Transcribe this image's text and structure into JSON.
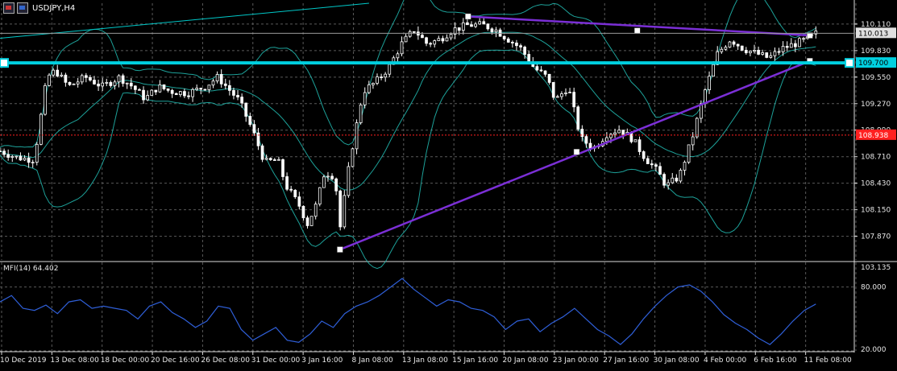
{
  "chart_data": [
    {
      "type": "candlestick",
      "title": "USDJPY,H4",
      "symbol": "USDJPY",
      "timeframe": "H4",
      "ylim": [
        107.62,
        110.33
      ],
      "y_ticks": [
        "110.110",
        "109.830",
        "109.550",
        "109.270",
        "108.990",
        "108.710",
        "108.430",
        "108.150",
        "107.870"
      ],
      "x_ticks": [
        "10 Dec 2019",
        "13 Dec 08:00",
        "18 Dec 00:00",
        "20 Dec 16:00",
        "26 Dec 08:00",
        "31 Dec 00:00",
        "3 Jan 16:00",
        "8 Jan 08:00",
        "13 Jan 08:00",
        "15 Jan 16:00",
        "20 Jan 08:00",
        "23 Jan 00:00",
        "27 Jan 16:00",
        "30 Jan 08:00",
        "4 Feb 00:00",
        "6 Feb 16:00",
        "11 Feb 08:00"
      ],
      "current_price": "110.013",
      "price_levels": [
        {
          "label": "109.700",
          "value": 109.7,
          "color": "#00d0e0"
        },
        {
          "label": "108.938",
          "value": 108.938,
          "color": "#ff2020"
        }
      ],
      "bollinger_bands": true,
      "trendlines": [
        {
          "name": "upper-trendline",
          "color": "#7b2fd6",
          "points": [
            [
              0.548,
              110.19
            ],
            [
              0.746,
              110.04
            ],
            [
              0.948,
              109.99
            ]
          ]
        },
        {
          "name": "lower-trendline",
          "color": "#7b2fd6",
          "points": [
            [
              0.398,
              107.73
            ],
            [
              0.675,
              108.76
            ],
            [
              0.948,
              109.72
            ]
          ]
        },
        {
          "name": "long-channel-line",
          "color": "#00c8c8",
          "points": [
            [
              0.0,
              109.96
            ],
            [
              0.432,
              110.33
            ]
          ]
        }
      ],
      "close_path": [
        [
          0.0,
          108.77
        ],
        [
          0.02,
          108.7
        ],
        [
          0.04,
          108.68
        ],
        [
          0.055,
          109.55
        ],
        [
          0.065,
          109.62
        ],
        [
          0.08,
          109.45
        ],
        [
          0.1,
          109.55
        ],
        [
          0.12,
          109.45
        ],
        [
          0.14,
          109.55
        ],
        [
          0.155,
          109.45
        ],
        [
          0.17,
          109.32
        ],
        [
          0.185,
          109.45
        ],
        [
          0.2,
          109.4
        ],
        [
          0.22,
          109.38
        ],
        [
          0.24,
          109.45
        ],
        [
          0.255,
          109.55
        ],
        [
          0.265,
          109.45
        ],
        [
          0.28,
          109.3
        ],
        [
          0.295,
          109.0
        ],
        [
          0.31,
          108.65
        ],
        [
          0.325,
          108.68
        ],
        [
          0.335,
          108.4
        ],
        [
          0.35,
          108.2
        ],
        [
          0.36,
          108.0
        ],
        [
          0.37,
          108.2
        ],
        [
          0.38,
          108.55
        ],
        [
          0.392,
          108.5
        ],
        [
          0.398,
          107.95
        ],
        [
          0.41,
          108.7
        ],
        [
          0.425,
          109.4
        ],
        [
          0.44,
          109.5
        ],
        [
          0.455,
          109.65
        ],
        [
          0.47,
          109.9
        ],
        [
          0.485,
          110.05
        ],
        [
          0.5,
          109.9
        ],
        [
          0.515,
          109.95
        ],
        [
          0.53,
          110.05
        ],
        [
          0.548,
          110.1
        ],
        [
          0.565,
          110.1
        ],
        [
          0.58,
          110.05
        ],
        [
          0.595,
          109.95
        ],
        [
          0.61,
          109.85
        ],
        [
          0.625,
          109.65
        ],
        [
          0.64,
          109.55
        ],
        [
          0.65,
          109.3
        ],
        [
          0.665,
          109.45
        ],
        [
          0.68,
          108.9
        ],
        [
          0.695,
          108.8
        ],
        [
          0.71,
          108.95
        ],
        [
          0.725,
          109.0
        ],
        [
          0.74,
          108.9
        ],
        [
          0.755,
          108.7
        ],
        [
          0.77,
          108.55
        ],
        [
          0.78,
          108.4
        ],
        [
          0.795,
          108.5
        ],
        [
          0.81,
          108.9
        ],
        [
          0.825,
          109.4
        ],
        [
          0.84,
          109.8
        ],
        [
          0.855,
          109.95
        ],
        [
          0.87,
          109.85
        ],
        [
          0.885,
          109.8
        ],
        [
          0.9,
          109.75
        ],
        [
          0.915,
          109.85
        ],
        [
          0.93,
          109.9
        ],
        [
          0.945,
          109.95
        ],
        [
          0.955,
          110.01
        ]
      ]
    },
    {
      "type": "line",
      "indicator": "MFI(14)",
      "label": "MFI(14) 64.402",
      "ylim": [
        20.0,
        103.135
      ],
      "y_ticks": [
        "103.135",
        "80.000",
        "20.000"
      ],
      "current_value": 64.402,
      "series": [
        {
          "color": "#2f5fd8",
          "values": [
            66,
            72,
            60,
            58,
            63,
            55,
            66,
            68,
            60,
            62,
            60,
            58,
            50,
            62,
            66,
            56,
            50,
            42,
            48,
            62,
            60,
            40,
            30,
            36,
            42,
            30,
            28,
            36,
            48,
            42,
            55,
            62,
            66,
            72,
            80,
            88,
            78,
            70,
            62,
            68,
            66,
            60,
            58,
            52,
            40,
            48,
            50,
            38,
            46,
            52,
            60,
            50,
            40,
            34,
            26,
            36,
            50,
            62,
            72,
            80,
            82,
            76,
            66,
            54,
            46,
            40,
            32,
            26,
            36,
            48,
            58,
            64
          ]
        }
      ]
    }
  ]
}
